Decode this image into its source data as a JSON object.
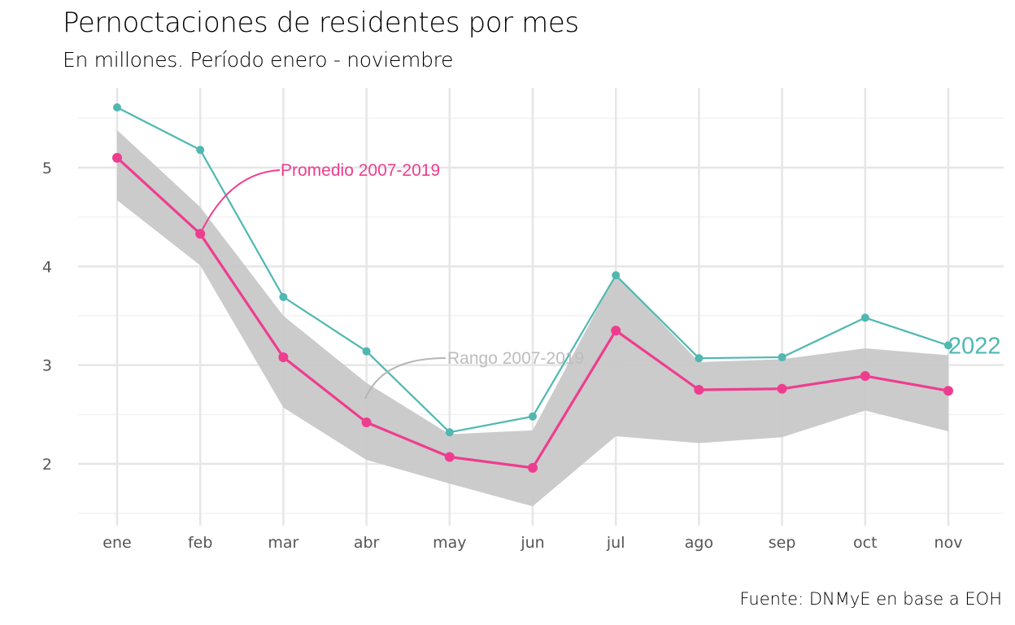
{
  "chart_data": {
    "type": "line",
    "title": "Pernoctaciones de residentes por mes",
    "subtitle": "En millones. Período enero - noviembre",
    "caption": "Fuente: DNMyE en base a EOH",
    "xlabel": "",
    "ylabel": "",
    "categories": [
      "ene",
      "feb",
      "mar",
      "abr",
      "may",
      "jun",
      "jul",
      "ago",
      "sep",
      "oct",
      "nov"
    ],
    "y_ticks": [
      "2",
      "3",
      "4",
      "5"
    ],
    "ylim": [
      1.42,
      5.82
    ],
    "grid": true,
    "series": [
      {
        "name": "2022",
        "color": "#50b8b1",
        "values": [
          5.61,
          5.18,
          3.69,
          3.14,
          2.32,
          2.48,
          3.91,
          3.07,
          3.08,
          3.48,
          3.2
        ]
      },
      {
        "name": "Promedio 2007-2019",
        "color": "#ee3d8f",
        "values": [
          5.1,
          4.33,
          3.08,
          2.42,
          2.07,
          1.96,
          3.35,
          2.75,
          2.76,
          2.89,
          2.74
        ]
      }
    ],
    "band": {
      "name": "Rango 2007-2019",
      "color": "#c8c8c8",
      "upper": [
        5.38,
        4.6,
        3.5,
        2.82,
        2.3,
        2.34,
        3.92,
        3.03,
        3.06,
        3.17,
        3.1
      ],
      "lower": [
        4.67,
        4.01,
        2.57,
        2.04,
        1.8,
        1.57,
        2.28,
        2.21,
        2.27,
        2.54,
        2.33
      ]
    },
    "annotations": {
      "promedio": "Promedio 2007-2019",
      "rango": "Rango 2007-2019",
      "year": "2022"
    }
  }
}
